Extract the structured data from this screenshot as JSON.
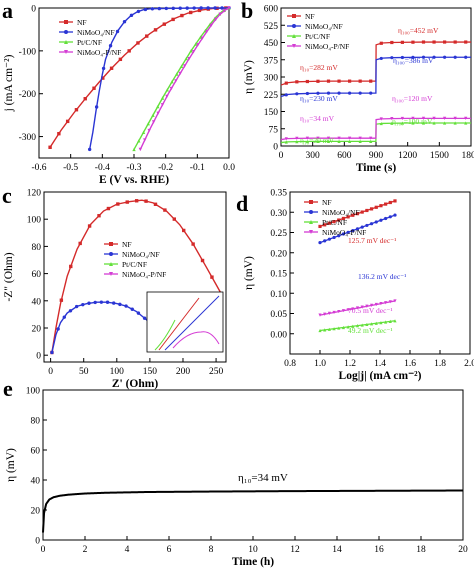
{
  "colors": {
    "nf": "#d42a2a",
    "nimoo4": "#2a35d4",
    "ptc": "#63e03a",
    "nimoop": "#d43cd4",
    "axis": "#000000"
  },
  "chart_data": [
    {
      "panel": "a",
      "type": "line",
      "xlabel": "E (V vs. RHE)",
      "ylabel": "j (mA cm⁻²)",
      "xlim": [
        -0.6,
        0.0
      ],
      "ylim": [
        -350,
        0
      ],
      "xticks": [
        "-0.6",
        "-0.5",
        "-0.4",
        "-0.3",
        "-0.2",
        "-0.1",
        "0.0"
      ],
      "yticks": [
        "0",
        "-100",
        "-200",
        "-300"
      ],
      "legend": [
        "NF",
        "NiMoO₄/NF",
        "Pt/C/NF",
        "NiMoO₄-P/NF"
      ],
      "legend_position": "top-left",
      "series": [
        {
          "name": "NF",
          "x": [
            -0.565,
            -0.53,
            -0.49,
            -0.45,
            -0.41,
            -0.37,
            -0.33,
            -0.29,
            -0.25,
            -0.21,
            -0.17,
            -0.13,
            -0.09,
            -0.05,
            -0.01
          ],
          "y": [
            -325,
            -285,
            -245,
            -208,
            -173,
            -140,
            -110,
            -83,
            -60,
            -40,
            -24,
            -12,
            -5,
            -1,
            0
          ]
        },
        {
          "name": "NiMoO₄/NF",
          "x": [
            -0.44,
            -0.43,
            -0.42,
            -0.41,
            -0.4,
            -0.39,
            -0.37,
            -0.35,
            -0.33,
            -0.31,
            -0.29,
            -0.27,
            -0.25,
            -0.2,
            -0.1,
            0.0
          ],
          "y": [
            -330,
            -290,
            -240,
            -195,
            -155,
            -120,
            -80,
            -52,
            -32,
            -18,
            -9,
            -4,
            -2,
            -1,
            0,
            0
          ]
        },
        {
          "name": "Pt/C/NF",
          "x": [
            -0.3,
            -0.27,
            -0.24,
            -0.21,
            -0.18,
            -0.15,
            -0.12,
            -0.09,
            -0.06,
            -0.04,
            -0.02,
            0.0
          ],
          "y": [
            -330,
            -290,
            -250,
            -210,
            -172,
            -136,
            -100,
            -68,
            -38,
            -20,
            -7,
            0
          ]
        },
        {
          "name": "NiMoO₄-P/NF",
          "x": [
            -0.28,
            -0.25,
            -0.22,
            -0.19,
            -0.16,
            -0.13,
            -0.1,
            -0.07,
            -0.05,
            -0.03,
            -0.01,
            0.0
          ],
          "y": [
            -330,
            -283,
            -240,
            -198,
            -160,
            -123,
            -88,
            -55,
            -34,
            -16,
            -4,
            0
          ]
        }
      ]
    },
    {
      "panel": "b",
      "type": "line",
      "xlabel": "Time (s)",
      "ylabel": "η (mV)",
      "xlim": [
        0,
        1800
      ],
      "ylim": [
        0,
        600
      ],
      "xticks": [
        "0",
        "300",
        "600",
        "900",
        "1200",
        "1500",
        "1800"
      ],
      "yticks": [
        "0",
        "75",
        "150",
        "225",
        "300",
        "375",
        "450",
        "525",
        "600"
      ],
      "legend": [
        "NF",
        "NiMoO₄/NF",
        "Pt/C/NF",
        "NiMoO₄-P/NF"
      ],
      "legend_position": "top-left",
      "annotations": [
        "η₁₀=282 mV",
        "η₁₀=230 mV",
        "η₁₀=34 mV",
        "η₁₀=20 mV",
        "η₁₀₀=452 mV",
        "η₁₀₀=386 mV",
        "η₁₀₀=120 mV",
        "η₁₀₀=100 mV"
      ],
      "series": [
        {
          "name": "NF",
          "x": [
            0,
            60,
            150,
            300,
            450,
            600,
            750,
            899,
            901,
            960,
            1050,
            1200,
            1350,
            1500,
            1650,
            1800
          ],
          "y": [
            265,
            275,
            279,
            281,
            282,
            282,
            282,
            282,
            440,
            448,
            450,
            451,
            452,
            452,
            452,
            452
          ]
        },
        {
          "name": "NiMoO₄/NF",
          "x": [
            0,
            60,
            150,
            300,
            450,
            600,
            750,
            899,
            901,
            960,
            1050,
            1200,
            1350,
            1500,
            1650,
            1800
          ],
          "y": [
            215,
            224,
            227,
            229,
            230,
            230,
            230,
            230,
            375,
            382,
            384,
            385,
            386,
            386,
            386,
            386
          ]
        },
        {
          "name": "Pt/C/NF",
          "x": [
            0,
            60,
            150,
            300,
            450,
            600,
            750,
            899,
            901,
            960,
            1050,
            1200,
            1350,
            1500,
            1650,
            1800
          ],
          "y": [
            15,
            18,
            19,
            20,
            20,
            20,
            20,
            20,
            95,
            98,
            99,
            100,
            100,
            100,
            100,
            100
          ]
        },
        {
          "name": "NiMoO₄-P/NF",
          "x": [
            0,
            60,
            150,
            300,
            450,
            600,
            750,
            899,
            901,
            960,
            1050,
            1200,
            1350,
            1500,
            1650,
            1800
          ],
          "y": [
            28,
            32,
            33,
            34,
            34,
            34,
            34,
            34,
            115,
            118,
            119,
            120,
            120,
            120,
            120,
            120
          ]
        }
      ]
    },
    {
      "panel": "c",
      "type": "scatter",
      "xlabel": "Z' (Ohm)",
      "ylabel": "-Z\" (Ohm)",
      "xlim": [
        -10,
        265
      ],
      "ylim": [
        -5,
        120
      ],
      "xticks": [
        "0",
        "50",
        "100",
        "150",
        "200",
        "250"
      ],
      "yticks": [
        "0",
        "20",
        "40",
        "60",
        "80",
        "100",
        "120"
      ],
      "legend": [
        "NF",
        "NiMoO₄/NF",
        "Pt/C/NF",
        "NiMoO₄-P/NF"
      ],
      "legend_position": "center-left",
      "series": [
        {
          "name": "NF",
          "x": [
            2,
            8,
            15,
            25,
            40,
            60,
            80,
            100,
            120,
            138,
            155,
            175,
            195,
            215,
            235,
            250,
            258
          ],
          "y": [
            2,
            20,
            38,
            58,
            78,
            96,
            106,
            111,
            113,
            114,
            112,
            106,
            96,
            82,
            65,
            52,
            45
          ]
        },
        {
          "name": "NiMoO₄/NF",
          "x": [
            2,
            8,
            15,
            25,
            40,
            55,
            70,
            85,
            100,
            115,
            130,
            140,
            150,
            160,
            170
          ],
          "y": [
            2,
            15,
            24,
            31,
            36,
            38,
            39,
            39,
            38,
            36,
            32,
            28,
            24,
            20,
            16
          ]
        }
      ]
    }
  ],
  "panel_d": {
    "xlabel": "Log|j| (mA cm⁻²)",
    "ylabel": "η (mV)",
    "xlim": [
      0.8,
      2.0
    ],
    "ylim": [
      -0.05,
      0.35
    ],
    "xticks": [
      "0.8",
      "1.0",
      "1.2",
      "1.4",
      "1.6",
      "1.8",
      "2.0"
    ],
    "yticks": [
      "0.00",
      "0.05",
      "0.10",
      "0.15",
      "0.20",
      "0.25",
      "0.30",
      "0.35"
    ],
    "legend": [
      "NF",
      "NiMoO₄/NF",
      "Pt/C/NF",
      "NiMoO₄-P/NF"
    ],
    "annotations": [
      "125.7 mV dec⁻¹",
      "136.2 mV dec⁻¹",
      "70.5 mV dec⁻¹",
      "49.2 mV dec⁻¹"
    ],
    "series": [
      {
        "name": "NF",
        "x": [
          1.0,
          1.5
        ],
        "y": [
          0.265,
          0.328
        ]
      },
      {
        "name": "NiMoO₄/NF",
        "x": [
          1.0,
          1.5
        ],
        "y": [
          0.225,
          0.293
        ]
      },
      {
        "name": "Pt/C/NF",
        "x": [
          1.0,
          1.5
        ],
        "y": [
          0.008,
          0.032
        ]
      },
      {
        "name": "NiMoO₄-P/NF",
        "x": [
          1.0,
          1.5
        ],
        "y": [
          0.046,
          0.081
        ]
      }
    ]
  },
  "panel_e": {
    "xlabel": "Time (h)",
    "ylabel": "η (mV)",
    "xlim": [
      0,
      20
    ],
    "ylim": [
      0,
      100
    ],
    "xticks": [
      "0",
      "2",
      "4",
      "6",
      "8",
      "10",
      "12",
      "14",
      "16",
      "18",
      "20"
    ],
    "yticks": [
      "0",
      "20",
      "40",
      "60",
      "80",
      "100"
    ],
    "annotation": "η₁₀=34 mV",
    "series": [
      {
        "name": "NiMoO₄-P/NF",
        "x": [
          0,
          0.05,
          0.15,
          0.3,
          0.5,
          0.8,
          1.2,
          2,
          3,
          5,
          8,
          12,
          16,
          20
        ],
        "y": [
          5,
          18,
          24,
          27,
          28.5,
          29.5,
          30.2,
          31,
          31.5,
          32,
          32.3,
          32.6,
          32.8,
          33
        ]
      }
    ]
  },
  "panel_labels": [
    "a",
    "b",
    "c",
    "d",
    "e"
  ]
}
